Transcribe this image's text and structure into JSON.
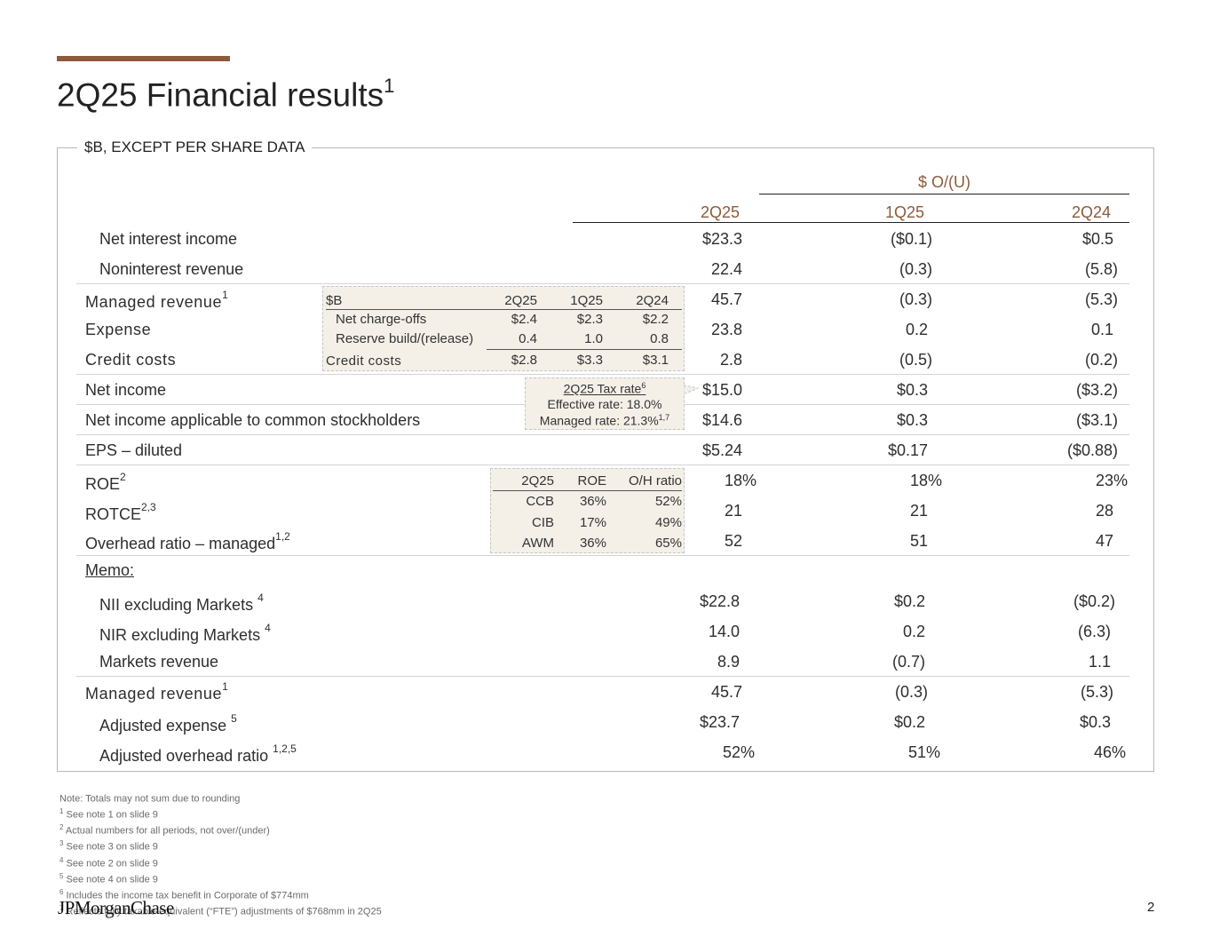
{
  "title": "2Q25 Financial results",
  "title_sup": "1",
  "section_caption": "$B, EXCEPT PER SHARE DATA",
  "ou_header": "$ O/(U)",
  "columns": [
    "2Q25",
    "1Q25",
    "2Q24"
  ],
  "rows": {
    "nii": {
      "label": "Net interest income",
      "sup": "",
      "v": [
        "$23.3",
        "($0.1)",
        "$0.5"
      ]
    },
    "nir": {
      "label": "Noninterest revenue",
      "sup": "",
      "v": [
        "22.4",
        "(0.3)",
        "(5.8)"
      ]
    },
    "mr": {
      "label": "Managed revenue",
      "sup": "1",
      "v": [
        "45.7",
        "(0.3)",
        "(5.3)"
      ]
    },
    "exp": {
      "label": "Expense",
      "sup": "",
      "v": [
        "23.8",
        "0.2",
        "0.1"
      ]
    },
    "cc": {
      "label": "Credit costs",
      "sup": "",
      "v": [
        "2.8",
        "(0.5)",
        "(0.2)"
      ]
    },
    "ni": {
      "label": "Net income",
      "sup": "",
      "v": [
        "$15.0",
        "$0.3",
        "($3.2)"
      ]
    },
    "nicom": {
      "label": "Net income applicable to common stockholders",
      "sup": "",
      "v": [
        "$14.6",
        "$0.3",
        "($3.1)"
      ]
    },
    "eps": {
      "label": "EPS – diluted",
      "sup": "",
      "v": [
        "$5.24",
        "$0.17",
        "($0.88)"
      ]
    },
    "roe": {
      "label": "ROE",
      "sup": "2",
      "v": [
        "18%",
        "18%",
        "23%"
      ]
    },
    "rotce": {
      "label": "ROTCE",
      "sup": "2,3",
      "v": [
        "21",
        "21",
        "28"
      ]
    },
    "ohr": {
      "label": "Overhead ratio – managed",
      "sup": "1,2",
      "v": [
        "52",
        "51",
        "47"
      ]
    },
    "memo": {
      "label": "Memo:"
    },
    "niix": {
      "label": "NII excluding Markets",
      "sup": "4",
      "v": [
        "$22.8",
        "$0.2",
        "($0.2)"
      ]
    },
    "nirx": {
      "label": "NIR excluding Markets",
      "sup": "4",
      "v": [
        "14.0",
        "0.2",
        "(6.3)"
      ]
    },
    "mkt": {
      "label": "Markets revenue",
      "sup": "",
      "v": [
        "8.9",
        "(0.7)",
        "1.1"
      ]
    },
    "mr2": {
      "label": "Managed revenue",
      "sup": "1",
      "v": [
        "45.7",
        "(0.3)",
        "(5.3)"
      ]
    },
    "adjexp": {
      "label": "Adjusted expense",
      "sup": "5",
      "v": [
        "$23.7",
        "$0.2",
        "$0.3"
      ]
    },
    "adjohr": {
      "label": "Adjusted overhead ratio",
      "sup": "1,2,5",
      "v": [
        "52%",
        "51%",
        "46%"
      ]
    }
  },
  "credit_box": {
    "header": [
      "$B",
      "2Q25",
      "1Q25",
      "2Q24"
    ],
    "rows": [
      {
        "label": "Net charge-offs",
        "v": [
          "$2.4",
          "$2.3",
          "$2.2"
        ]
      },
      {
        "label": "Reserve build/(release)",
        "v": [
          "0.4",
          "1.0",
          "0.8"
        ]
      }
    ],
    "total": {
      "label": "Credit costs",
      "v": [
        "$2.8",
        "$3.3",
        "$3.1"
      ]
    }
  },
  "tax_box": {
    "title": "2Q25 Tax rate",
    "title_sup": "6",
    "effective": "Effective rate: 18.0%",
    "managed": "Managed rate: 21.3%",
    "managed_sup": "1,7"
  },
  "roe_box": {
    "header": [
      "2Q25",
      "ROE",
      "O/H ratio"
    ],
    "rows": [
      {
        "seg": "CCB",
        "roe": "36%",
        "oh": "52%"
      },
      {
        "seg": "CIB",
        "roe": "17%",
        "oh": "49%"
      },
      {
        "seg": "AWM",
        "roe": "36%",
        "oh": "65%"
      }
    ]
  },
  "notes": [
    {
      "sup": "",
      "text": "Note: Totals may not sum due to rounding"
    },
    {
      "sup": "1",
      "text": " See note 1 on slide 9"
    },
    {
      "sup": "2",
      "text": " Actual numbers for all periods, not over/(under)"
    },
    {
      "sup": "3",
      "text": " See note 3 on slide 9"
    },
    {
      "sup": "4",
      "text": " See note 2 on slide 9"
    },
    {
      "sup": "5",
      "text": " See note 4 on slide 9"
    },
    {
      "sup": "6",
      "text": " Includes the income tax benefit in Corporate of $774mm"
    },
    {
      "sup": "7",
      "text": " Reflects fully taxable-equivalent (“FTE”) adjustments of $768mm in 2Q25"
    }
  ],
  "logo": "JPMorganChase",
  "page_number": "2",
  "colors": {
    "accent": "#8c5b3c",
    "box_fill": "#f4f0e8",
    "rule": "#d4d4d4"
  }
}
